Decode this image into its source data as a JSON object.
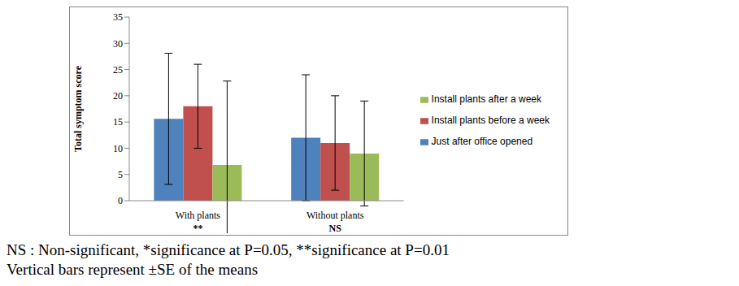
{
  "chart_data": {
    "type": "bar",
    "y_label": "Total symptom score",
    "categories": [
      "With plants",
      "Without plants"
    ],
    "significance": [
      "**",
      "NS"
    ],
    "series": [
      {
        "name": "Just after office opened",
        "color": "#4f81bd",
        "values": [
          15.6,
          12
        ],
        "errors": [
          12.5,
          12
        ]
      },
      {
        "name": "Install plants before a week",
        "color": "#c0504d",
        "values": [
          18,
          11
        ],
        "errors": [
          8,
          9
        ]
      },
      {
        "name": "Install plants after a week",
        "color": "#9bbb59",
        "values": [
          6.8,
          9
        ],
        "errors": [
          16,
          10
        ]
      }
    ],
    "ylim": [
      0,
      35
    ],
    "yticks": [
      0,
      5,
      10,
      15,
      20,
      25,
      30,
      35
    ],
    "grid": false,
    "legend": "right",
    "notes": [
      "NS : Non-significant, *significance at P=0.05, **significance at P=0.01",
      "Vertical bars represent ±SE of the means"
    ]
  }
}
